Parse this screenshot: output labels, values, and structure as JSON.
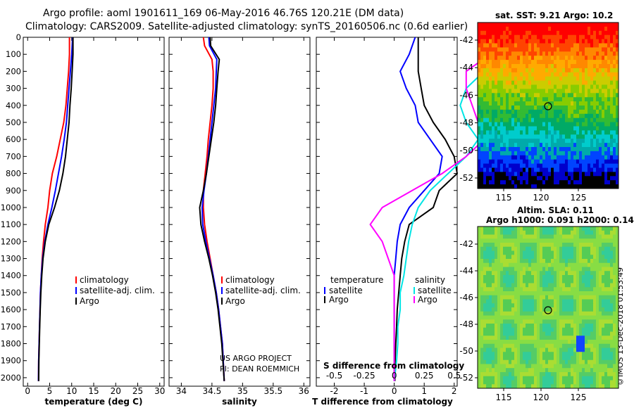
{
  "header": {
    "title_line1": "Argo profile: aoml 1901611_169 06-May-2016 46.76S 120.21E (DM data)",
    "title_line2": "Climatology: CARS2009. Satellite-adjusted climatology: synTS_20160506.nc (0.6d earlier)"
  },
  "sst_panel": {
    "title": "sat. SST: 9.21 Argo: 10.2",
    "xticks": [
      "115",
      "120",
      "125"
    ],
    "yticks": [
      "-42",
      "-44",
      "-46",
      "-48",
      "-50",
      "-52"
    ]
  },
  "sla_panel": {
    "title_line1": "Altim. SLA: 0.11",
    "title_line2": "Argo h1000: 0.091 h2000: 0.14",
    "xticks": [
      "115",
      "120",
      "125"
    ],
    "yticks": [
      "-42",
      "-44",
      "-46",
      "-48",
      "-50",
      "-52"
    ]
  },
  "credit": "©IMOS 13-Dec-2018 01:53:49",
  "project_line1": "US ARGO PROJECT",
  "project_line2": "PI: DEAN ROEMMICH",
  "colors": {
    "climatology": "#ff0000",
    "satellite": "#0000ff",
    "argo": "#000000",
    "sat_salinity": "#00e5e5",
    "clim_salinity": "#ff00ff"
  },
  "chart_data": [
    {
      "type": "line",
      "panel": "temperature",
      "xlabel": "temperature (deg C)",
      "ylabel": "",
      "xlim": [
        -1,
        31
      ],
      "ylim": [
        2050,
        0
      ],
      "xticks": [
        0,
        5,
        10,
        15,
        20,
        25,
        30
      ],
      "yticks": [
        0,
        100,
        200,
        300,
        400,
        500,
        600,
        700,
        800,
        900,
        1000,
        1100,
        1200,
        1300,
        1400,
        1500,
        1600,
        1700,
        1800,
        1900,
        2000
      ],
      "legend": [
        "climatology",
        "satellite-adj. clim.",
        "Argo"
      ],
      "legend_position": "lower-right",
      "series": [
        {
          "name": "climatology",
          "color": "#ff0000",
          "x": [
            9.5,
            9.5,
            9.3,
            9.0,
            8.7,
            8.2,
            7.4,
            6.6,
            5.6,
            5.0,
            4.6,
            4.0,
            3.6,
            3.3,
            3.1,
            2.9,
            2.8,
            2.7,
            2.6,
            2.5,
            2.45
          ],
          "y": [
            0,
            100,
            200,
            300,
            400,
            500,
            600,
            700,
            800,
            900,
            1000,
            1100,
            1200,
            1300,
            1400,
            1500,
            1600,
            1700,
            1800,
            1900,
            2020
          ]
        },
        {
          "name": "satellite-adj. clim.",
          "color": "#0000ff",
          "x": [
            10.2,
            10.0,
            9.7,
            9.4,
            9.1,
            8.8,
            8.3,
            7.7,
            7.0,
            6.3,
            5.5,
            4.6,
            3.9,
            3.4,
            3.1,
            2.9,
            2.8,
            2.7,
            2.6,
            2.5,
            2.45
          ],
          "y": [
            0,
            100,
            200,
            300,
            400,
            500,
            600,
            700,
            800,
            900,
            1000,
            1100,
            1200,
            1300,
            1400,
            1500,
            1600,
            1700,
            1800,
            1900,
            2020
          ]
        },
        {
          "name": "Argo",
          "color": "#000000",
          "x": [
            10.3,
            10.3,
            10.1,
            9.9,
            9.6,
            9.4,
            9.0,
            8.6,
            8.0,
            7.2,
            6.1,
            4.8,
            4.0,
            3.5,
            3.2,
            3.0,
            2.85,
            2.75,
            2.65,
            2.55,
            2.5
          ],
          "y": [
            0,
            100,
            200,
            300,
            400,
            500,
            600,
            700,
            800,
            900,
            1000,
            1100,
            1200,
            1300,
            1400,
            1500,
            1600,
            1700,
            1800,
            1900,
            2020
          ]
        }
      ]
    },
    {
      "type": "line",
      "panel": "salinity",
      "xlabel": "salinity",
      "ylabel": "",
      "xlim": [
        33.8,
        36.1
      ],
      "ylim": [
        2050,
        0
      ],
      "xticks": [
        34,
        34.5,
        35,
        35.5,
        36
      ],
      "xticklabels": [
        "34",
        "34.5",
        "35",
        "35.5",
        "36"
      ],
      "legend": [
        "climatology",
        "satellite-adj. clim.",
        "Argo"
      ],
      "legend_position": "lower-right",
      "series": [
        {
          "name": "climatology",
          "color": "#ff0000",
          "x": [
            34.36,
            34.38,
            34.5,
            34.52,
            34.52,
            34.5,
            34.47,
            34.44,
            34.42,
            34.39,
            34.36,
            34.36,
            34.38,
            34.42,
            34.47,
            34.52,
            34.57,
            34.61,
            34.64,
            34.67,
            34.7
          ],
          "y": [
            0,
            50,
            130,
            200,
            300,
            400,
            500,
            600,
            700,
            800,
            900,
            1000,
            1100,
            1200,
            1300,
            1400,
            1500,
            1600,
            1700,
            1800,
            2020
          ]
        },
        {
          "name": "satellite-adj. clim.",
          "color": "#0000ff",
          "x": [
            34.45,
            34.46,
            34.58,
            34.57,
            34.56,
            34.53,
            34.5,
            34.47,
            34.44,
            34.41,
            34.37,
            34.34,
            34.35,
            34.4,
            34.46,
            34.52,
            34.57,
            34.61,
            34.64,
            34.67,
            34.7
          ],
          "y": [
            0,
            50,
            130,
            200,
            300,
            400,
            500,
            600,
            700,
            800,
            900,
            1000,
            1100,
            1200,
            1300,
            1400,
            1500,
            1600,
            1700,
            1800,
            2020
          ]
        },
        {
          "name": "Argo",
          "color": "#000000",
          "x": [
            34.47,
            34.48,
            34.62,
            34.6,
            34.58,
            34.56,
            34.53,
            34.49,
            34.45,
            34.41,
            34.36,
            34.3,
            34.32,
            34.38,
            34.45,
            34.51,
            34.56,
            34.6,
            34.63,
            34.66,
            34.7
          ],
          "y": [
            0,
            50,
            130,
            200,
            300,
            400,
            500,
            600,
            700,
            800,
            900,
            1000,
            1100,
            1200,
            1300,
            1400,
            1500,
            1600,
            1700,
            1800,
            2020
          ]
        }
      ]
    },
    {
      "type": "line",
      "panel": "difference",
      "xlabel": "T difference from climatology",
      "x2label": "S difference from climatology",
      "ylabel": "",
      "xlim": [
        -2.6,
        2.1
      ],
      "ylim": [
        2050,
        0
      ],
      "xticks": [
        -2,
        -1,
        0,
        1,
        2
      ],
      "x2ticks": [
        -0.5,
        -0.25,
        0,
        0.25,
        0.5
      ],
      "x2ticklabels": [
        "-0.5",
        "-0.25",
        "0",
        "0.25",
        "0.5"
      ],
      "legend_temperature_title": "temperature",
      "legend_salinity_title": "salinity",
      "legend_temperature": [
        "satellite",
        "Argo"
      ],
      "legend_salinity": [
        "satellite",
        "Argo"
      ],
      "series": [
        {
          "name": "satellite",
          "group": "temperature",
          "color": "#0000ff",
          "x": [
            0.7,
            0.5,
            0.2,
            0.4,
            0.7,
            0.8,
            1.2,
            1.6,
            1.5,
            1.0,
            0.5,
            0.2,
            0.1,
            0.05,
            0.0,
            0.0,
            0.0,
            0.0,
            0.0,
            0.0,
            0.0
          ],
          "y": [
            0,
            100,
            200,
            300,
            400,
            500,
            600,
            700,
            800,
            900,
            1000,
            1100,
            1200,
            1300,
            1400,
            1500,
            1600,
            1700,
            1800,
            1900,
            2020
          ]
        },
        {
          "name": "Argo",
          "group": "temperature",
          "color": "#000000",
          "x": [
            0.8,
            0.8,
            0.8,
            0.9,
            1.0,
            1.3,
            1.7,
            2.0,
            2.1,
            1.5,
            1.3,
            0.5,
            0.35,
            0.25,
            0.2,
            0.15,
            0.1,
            0.08,
            0.05,
            0.03,
            0.02
          ],
          "y": [
            0,
            100,
            200,
            300,
            400,
            500,
            600,
            700,
            800,
            900,
            1000,
            1100,
            1200,
            1300,
            1400,
            1500,
            1600,
            1700,
            1800,
            1900,
            2020
          ]
        },
        {
          "name": "satellite",
          "group": "salinity",
          "color": "#00e5e5",
          "x": [
            0.85,
            0.7,
            0.75,
            0.6,
            0.55,
            0.6,
            0.7,
            0.6,
            0.45,
            0.3,
            0.2,
            0.15,
            0.12,
            0.1,
            0.08,
            0.05,
            0.05,
            0.03,
            0.03,
            0.02,
            0.0
          ],
          "y": [
            0,
            100,
            200,
            300,
            400,
            500,
            600,
            700,
            800,
            900,
            1000,
            1100,
            1200,
            1300,
            1400,
            1500,
            1600,
            1700,
            1800,
            1900,
            2020
          ]
        },
        {
          "name": "Argo",
          "group": "salinity",
          "color": "#ff00ff",
          "x": [
            0.95,
            0.8,
            0.6,
            0.6,
            0.65,
            0.7,
            0.75,
            0.6,
            0.4,
            0.15,
            -0.1,
            -0.2,
            -0.1,
            -0.05,
            0.0,
            0.0,
            0.0,
            0.0,
            0.0,
            0.0,
            0.0
          ],
          "y": [
            0,
            100,
            200,
            300,
            400,
            500,
            600,
            700,
            800,
            900,
            1000,
            1100,
            1200,
            1300,
            1400,
            1500,
            1600,
            1700,
            1800,
            1900,
            2020
          ]
        }
      ]
    }
  ]
}
